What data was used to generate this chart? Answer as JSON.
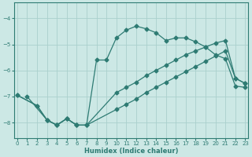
{
  "xlabel": "Humidex (Indice chaleur)",
  "background_color": "#cce8e5",
  "grid_color": "#aad0cc",
  "line_color": "#2e7b73",
  "xlim": [
    -0.3,
    23.3
  ],
  "ylim": [
    -8.6,
    -3.4
  ],
  "xticks": [
    0,
    1,
    2,
    3,
    4,
    5,
    6,
    7,
    8,
    9,
    10,
    11,
    12,
    13,
    14,
    15,
    16,
    17,
    18,
    19,
    20,
    21,
    22,
    23
  ],
  "yticks": [
    -8,
    -7,
    -6,
    -5,
    -4
  ],
  "curve1_x": [
    1,
    3,
    4,
    5,
    6,
    7,
    8,
    9,
    10,
    11,
    12,
    13,
    14,
    15,
    16,
    17,
    18,
    19,
    20,
    21,
    22,
    23
  ],
  "curve1_y": [
    -7.0,
    -7.9,
    -8.1,
    -7.85,
    -8.1,
    -8.1,
    -5.6,
    -5.6,
    -4.75,
    -4.45,
    -4.3,
    -4.4,
    -4.55,
    -4.85,
    -4.75,
    -4.75,
    -4.9,
    -5.1,
    -5.4,
    -5.55,
    -6.6,
    -6.65
  ],
  "curve2_x": [
    0,
    2,
    3,
    4,
    5,
    6,
    7,
    10,
    11,
    12,
    13,
    14,
    15,
    16,
    17,
    18,
    19,
    20,
    21,
    22,
    23
  ],
  "curve2_y": [
    -6.95,
    -7.35,
    -7.9,
    -8.1,
    -7.85,
    -8.1,
    -8.1,
    -6.85,
    -6.65,
    -6.45,
    -6.2,
    -6.0,
    -5.8,
    -5.6,
    -5.4,
    -5.25,
    -5.1,
    -4.95,
    -4.85,
    -6.3,
    -6.5
  ],
  "curve3_x": [
    0,
    2,
    3,
    4,
    5,
    6,
    7,
    10,
    11,
    12,
    13,
    14,
    15,
    16,
    17,
    18,
    19,
    20,
    21,
    22,
    23
  ],
  "curve3_y": [
    -6.95,
    -7.35,
    -7.9,
    -8.1,
    -7.85,
    -8.1,
    -8.1,
    -7.5,
    -7.3,
    -7.1,
    -6.85,
    -6.65,
    -6.45,
    -6.25,
    -6.05,
    -5.85,
    -5.65,
    -5.45,
    -5.25,
    -6.3,
    -6.5
  ]
}
